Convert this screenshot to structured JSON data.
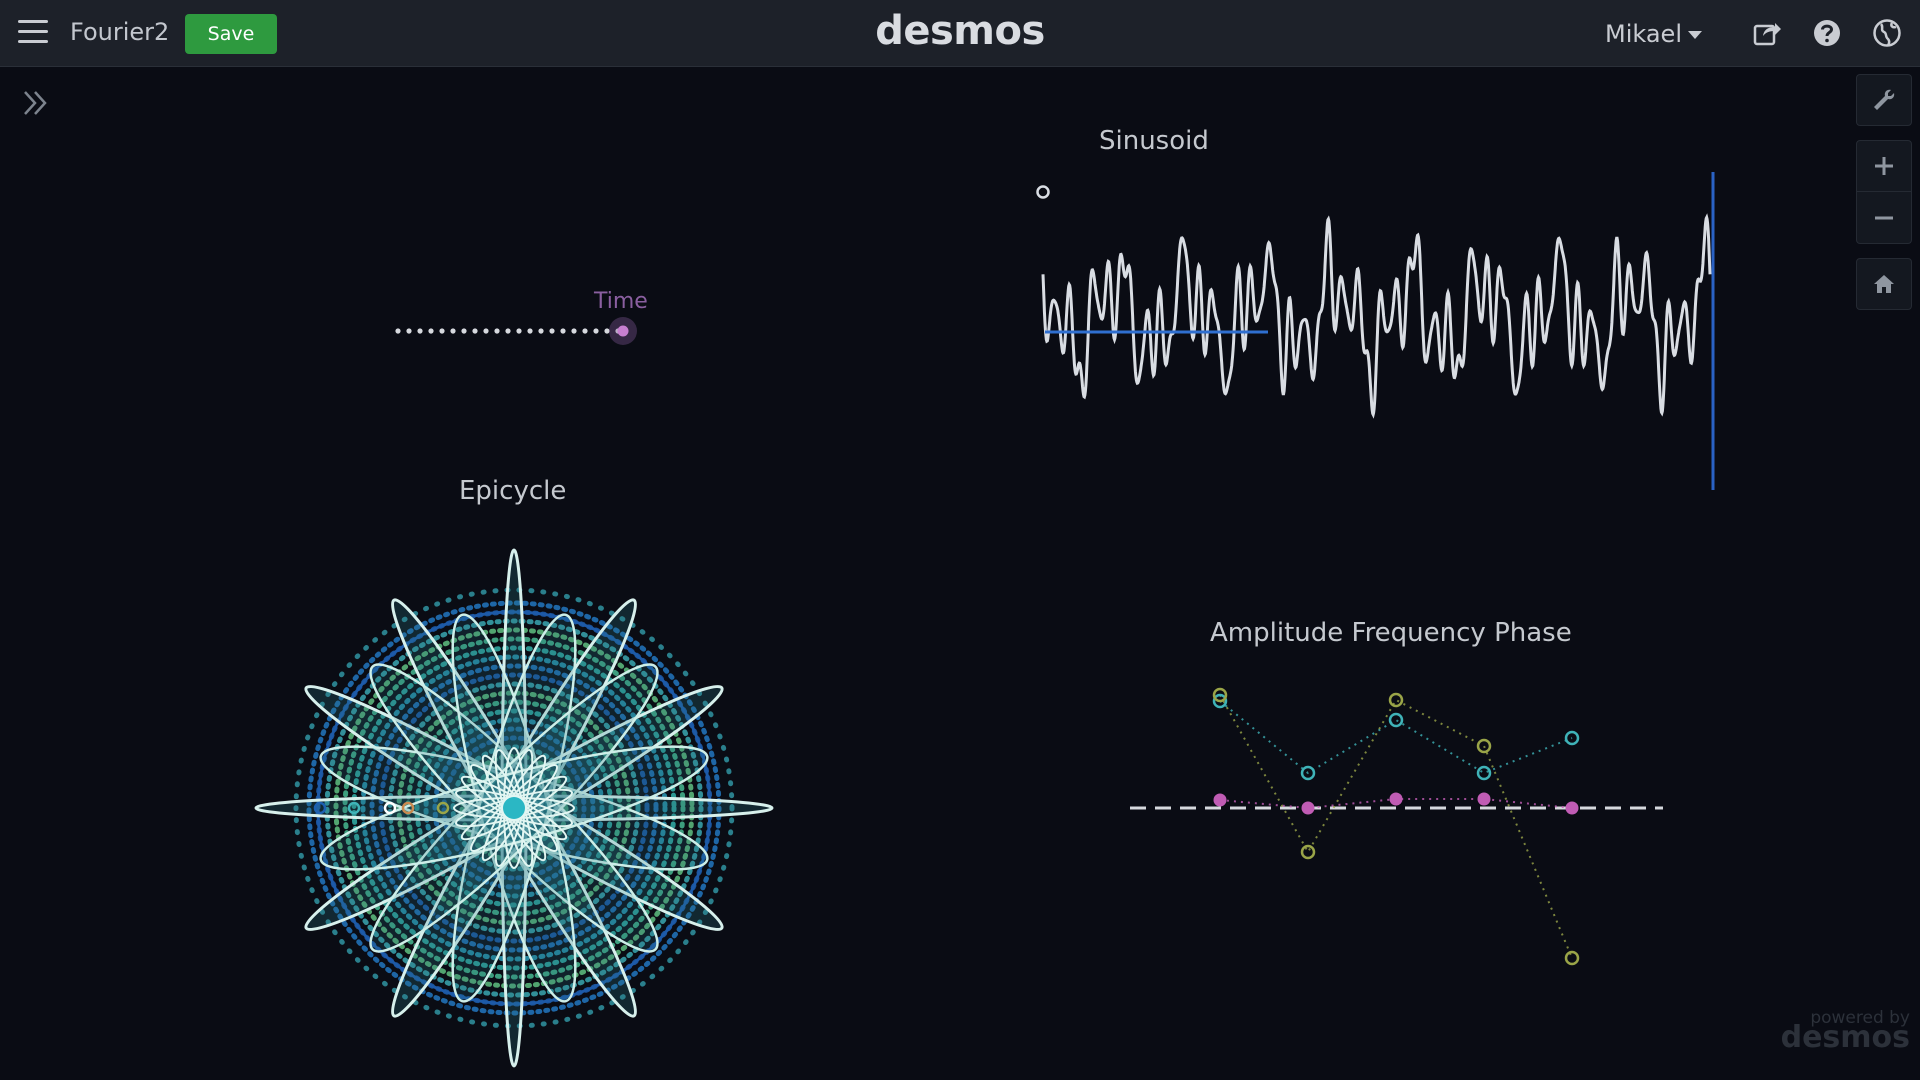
{
  "header": {
    "graph_title": "Fourier2",
    "save_label": "Save",
    "brand": "desmos",
    "user_name": "Mikael"
  },
  "graph": {
    "slider_label": "Time",
    "sinusoid_label": "Sinusoid",
    "epicycle_label": "Epicycle",
    "spectrum_label": "Amplitude Frequency Phase",
    "powered_by_line1": "powered by",
    "powered_by_line2": "desmos",
    "slider_value": 1.0
  },
  "icons": {
    "menu": "hamburger-menu-icon",
    "share": "share-icon",
    "help": "help-icon",
    "language": "globe-icon",
    "expand": "double-chevron-right-icon",
    "settings": "wrench-icon",
    "zoom_in": "plus-icon",
    "zoom_out": "minus-icon",
    "home": "home-icon"
  },
  "colors": {
    "background": "#0a0c14",
    "topbar": "#1d2129",
    "save_green": "#2e9a3f",
    "curve_white": "#d9dde3",
    "time_purple": "#8a5fa0",
    "amplitude_pink": "#c05cb4",
    "frequency_teal": "#3fb3b8",
    "phase_olive": "#9aa548"
  }
}
